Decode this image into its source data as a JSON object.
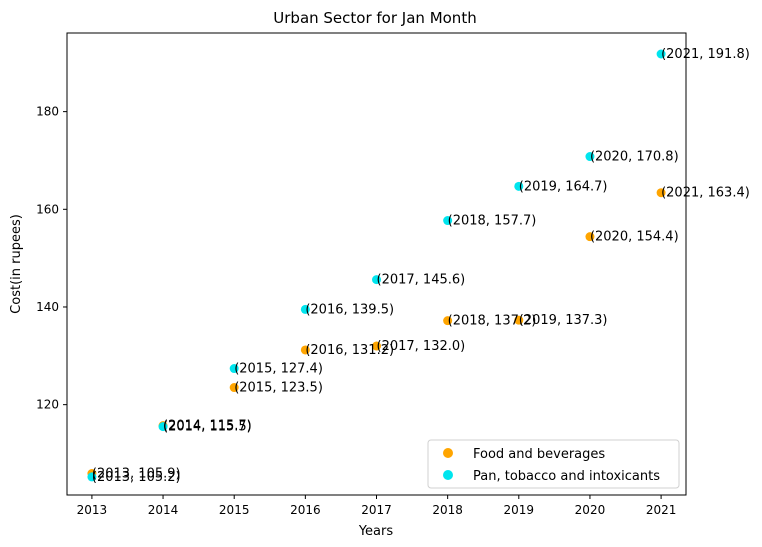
{
  "chart_data": {
    "type": "scatter",
    "title": "Urban Sector for Jan Month",
    "xlabel": "Years",
    "ylabel": "Cost(in rupees)",
    "xlim": [
      2012.65,
      2021.35
    ],
    "ylim": [
      101.5,
      196.1
    ],
    "xticks": [
      2013,
      2014,
      2015,
      2016,
      2017,
      2018,
      2019,
      2020,
      2021
    ],
    "yticks": [
      120,
      140,
      160,
      180
    ],
    "legend_position": "lower-right",
    "series": [
      {
        "name": "Food and beverages",
        "color": "#ffa500",
        "x": [
          2013,
          2014,
          2015,
          2016,
          2017,
          2018,
          2019,
          2020,
          2021
        ],
        "y": [
          105.9,
          115.7,
          123.5,
          131.2,
          132.0,
          137.2,
          137.3,
          154.4,
          163.4
        ],
        "labels": [
          "(2013, 105.9)",
          "(2014, 115.7)",
          "(2015, 123.5)",
          "(2016, 131.2)",
          "(2017, 132.0)",
          "(2018, 137.2)",
          "(2019, 137.3)",
          "(2020, 154.4)",
          "(2021, 163.4)"
        ]
      },
      {
        "name": "Pan, tobacco and intoxicants",
        "color": "#00e5ee",
        "x": [
          2013,
          2014,
          2015,
          2016,
          2017,
          2018,
          2019,
          2020,
          2021
        ],
        "y": [
          105.2,
          115.5,
          127.4,
          139.5,
          145.6,
          157.7,
          164.7,
          170.8,
          191.8
        ],
        "labels": [
          "(2013, 105.2)",
          "(2014, 115.5)",
          "(2015, 127.4)",
          "(2016, 139.5)",
          "(2017, 145.6)",
          "(2018, 157.7)",
          "(2019, 164.7)",
          "(2020, 170.8)",
          "(2021, 191.8)"
        ]
      }
    ]
  }
}
